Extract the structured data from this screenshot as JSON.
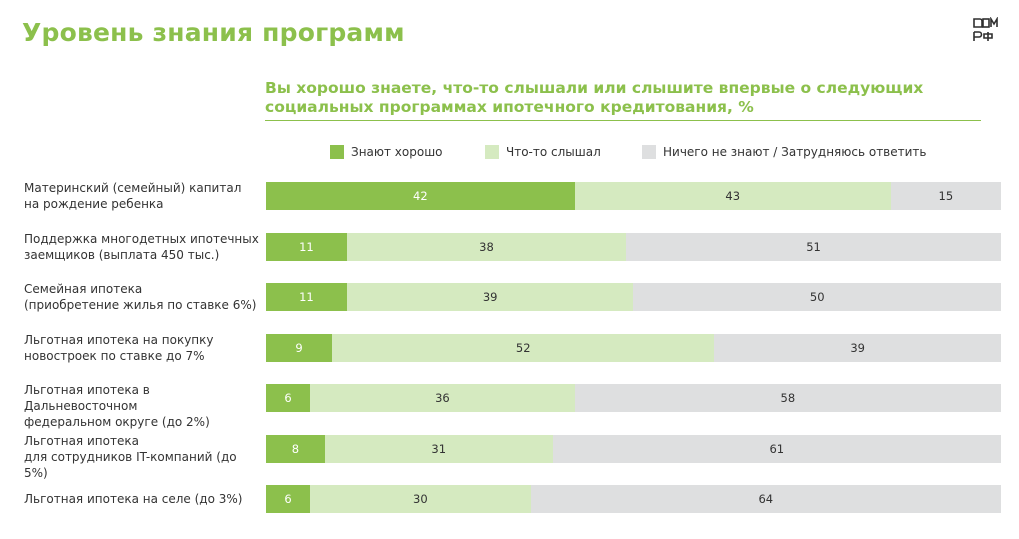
{
  "header": {
    "title": "Уровень знания программ"
  },
  "colors": {
    "accent": "#8cc04c",
    "know_well": "#8cc04c",
    "heard": "#d5eac0",
    "dont_know": "#dedfe0"
  },
  "legend": [
    {
      "label": "Знают хорошо",
      "color": "#8cc04c"
    },
    {
      "label": "Что-то слышал",
      "color": "#d5eac0"
    },
    {
      "label": "Ничего не знают / Затрудняюсь ответить",
      "color": "#dedfe0"
    }
  ],
  "chart_data": {
    "type": "bar",
    "orientation": "horizontal",
    "stacked": true,
    "title": "Вы хорошо знаете, что-то слышали или слышите впервые о следующих социальных программах ипотечного кредитования, %",
    "legend_position": "top",
    "categories": [
      "Материнский (семейный) капитал\nна рождение ребенка",
      "Поддержка многодетных ипотечных\nзаемщиков (выплата 450 тыс.)",
      "Семейная ипотека\n(приобретение жилья по ставке 6%)",
      "Льготная ипотека на покупку\nновостроек по ставке до 7%",
      "Льготная ипотека в Дальневосточном\nфедеральном округе (до 2%)",
      "Льготная ипотека\nдля сотрудников IT-компаний (до 5%)",
      "Льготная ипотека на селе (до 3%)"
    ],
    "series": [
      {
        "name": "Знают хорошо",
        "values": [
          42,
          11,
          11,
          9,
          6,
          8,
          6
        ]
      },
      {
        "name": "Что-то слышал",
        "values": [
          43,
          38,
          39,
          52,
          36,
          31,
          30
        ]
      },
      {
        "name": "Ничего не знают / Затрудняюсь ответить",
        "values": [
          15,
          51,
          50,
          39,
          58,
          61,
          64
        ]
      }
    ]
  }
}
